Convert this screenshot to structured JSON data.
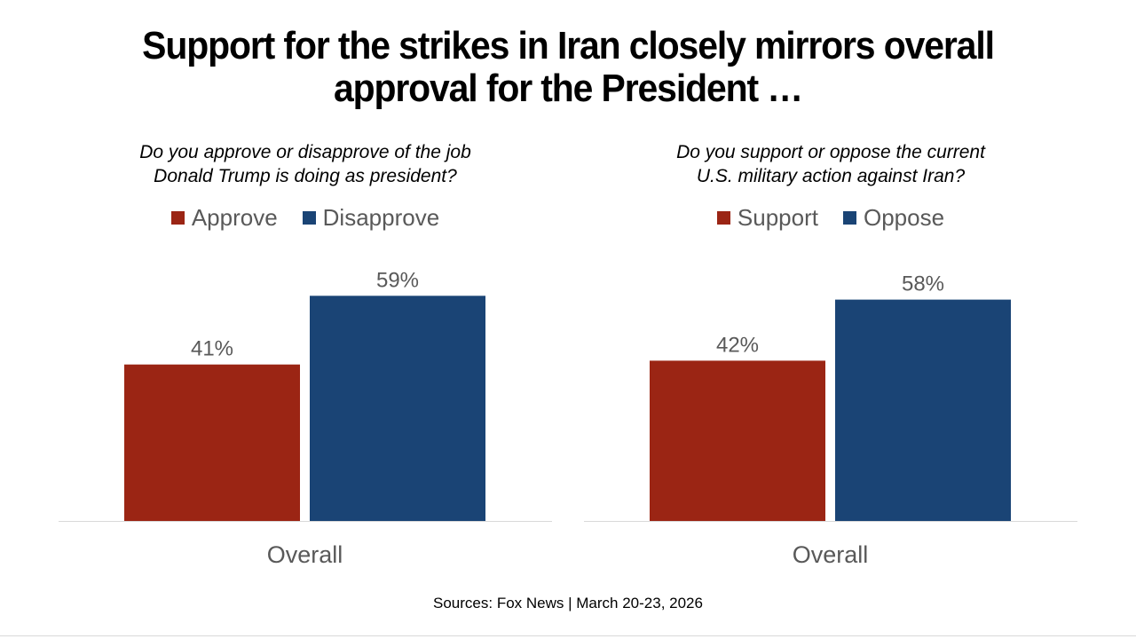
{
  "title": {
    "line1": "Support for the strikes in Iran closely mirrors overall",
    "line2": "approval for the President …"
  },
  "source": "Sources: Fox News | March 20-23, 2026",
  "colors": {
    "red": "#9b2514",
    "blue": "#1a4475",
    "label": "#595959"
  },
  "chart_data": [
    {
      "type": "bar",
      "question_line1": "Do you approve or disapprove of the job",
      "question_line2": "Donald Trump is doing as president?",
      "categories": [
        "Overall"
      ],
      "series": [
        {
          "name": "Approve",
          "values": [
            41
          ],
          "color": "#9b2514"
        },
        {
          "name": "Disapprove",
          "values": [
            59
          ],
          "color": "#1a4475"
        }
      ],
      "data_labels": [
        "41%",
        "59%"
      ],
      "ylim": [
        0,
        100
      ],
      "legend": "top-center",
      "grid": false
    },
    {
      "type": "bar",
      "question_line1": "Do you support or oppose the current",
      "question_line2": "U.S. military action against Iran?",
      "categories": [
        "Overall"
      ],
      "series": [
        {
          "name": "Support",
          "values": [
            42
          ],
          "color": "#9b2514"
        },
        {
          "name": "Oppose",
          "values": [
            58
          ],
          "color": "#1a4475"
        }
      ],
      "data_labels": [
        "42%",
        "58%"
      ],
      "ylim": [
        0,
        100
      ],
      "legend": "top-center",
      "grid": false
    }
  ]
}
